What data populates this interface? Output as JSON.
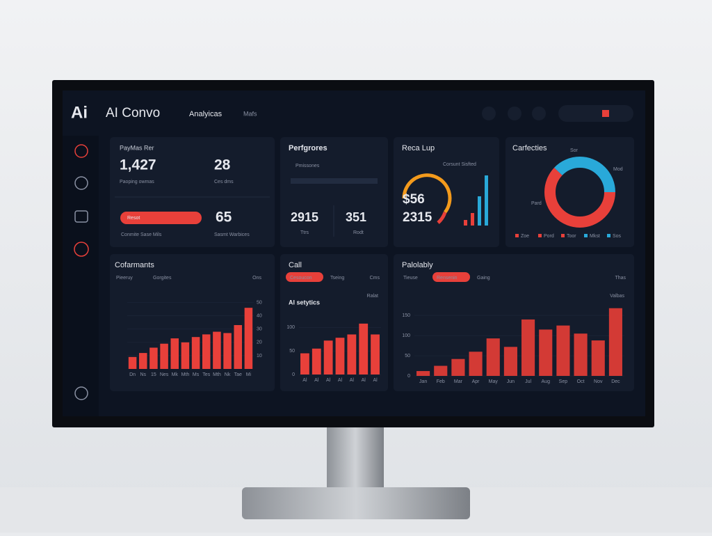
{
  "header": {
    "logo_mark": "Ai",
    "logo": "AI Convo",
    "nav": [
      "Analyicas",
      "Mafs"
    ]
  },
  "cards": {
    "summary": {
      "title": "PayMas Rer",
      "stat1": "1,427",
      "stat1_label": "Paoping owmas",
      "stat2": "28",
      "stat2_label": "Ces dms",
      "pill": "Resot",
      "pill_label": "Conmite Sase Mils",
      "stat3": "65",
      "stat3_label": "Sasmt Warbices"
    },
    "performance": {
      "title": "Perfgrores",
      "subtitle": "Pmissones",
      "stat1": "2915",
      "stat1_label": "Ttrs",
      "stat2": "351",
      "stat2_label": "Rodt"
    },
    "recap": {
      "title": "Reca Lup",
      "subtitle": "Corsunt Sisfted",
      "stat1": "$56",
      "stat2": "2315"
    },
    "donut": {
      "title": "Carfecties",
      "top_label": "Sor",
      "right_label": "Mod",
      "left_label": "Pard",
      "values": [
        62,
        38
      ],
      "colors": [
        "#e8403a",
        "#29a9d9"
      ],
      "legend": [
        {
          "name": "Zoe",
          "color": "#e8403a"
        },
        {
          "name": "Pord",
          "color": "#e8403a"
        },
        {
          "name": "Toor",
          "color": "#e8403a"
        },
        {
          "name": "Mkst",
          "color": "#29a9d9"
        },
        {
          "name": "Sos",
          "color": "#29a9d9"
        }
      ]
    }
  },
  "chart_data": [
    {
      "type": "bar",
      "title": "Cofarmants",
      "tabs": [
        "Pieeruy",
        "Gorgites"
      ],
      "corner": "Ons",
      "active_tab": null,
      "categories": [
        "Dn",
        "Ns",
        "15",
        "Nes",
        "Mk",
        "Mth",
        "Ms",
        "Tes",
        "Mth",
        "Nk",
        "Tae",
        "Mi"
      ],
      "values": [
        9,
        12,
        16,
        19,
        23,
        20,
        24,
        26,
        28,
        27,
        33,
        46
      ],
      "color": "#e8403a",
      "ylim": [
        0,
        55
      ],
      "yticks": [
        10,
        20,
        30,
        40,
        50
      ],
      "axis_side": "right"
    },
    {
      "type": "bar",
      "title": "Call",
      "tabs": [
        "Cesoucon",
        "Tseing"
      ],
      "corner": "Cms",
      "active_tab": 0,
      "subtitle": "Al setytics",
      "subtitle_right": "Ralat",
      "categories": [
        "Al",
        "Al",
        "Al",
        "Al",
        "Al",
        "Al",
        "Al"
      ],
      "values": [
        45,
        55,
        72,
        78,
        85,
        108,
        85
      ],
      "color": "#e8403a",
      "ylim": [
        0,
        130
      ],
      "yticks": [
        0,
        50,
        100
      ],
      "axis_side": "left"
    },
    {
      "type": "bar",
      "title": "Palolably",
      "tabs": [
        "Tieuse",
        "Rensenin",
        "Gaing"
      ],
      "corner": "Thas",
      "active_tab": 1,
      "subtitle_right": "Valbas",
      "categories": [
        "Jan",
        "Feb",
        "Mar",
        "Apr",
        "May",
        "Jun",
        "Jul",
        "Aug",
        "Sep",
        "Oct",
        "Nov",
        "Dec"
      ],
      "values": [
        12,
        25,
        42,
        60,
        93,
        72,
        140,
        115,
        125,
        105,
        88,
        168
      ],
      "color": "#d33a35",
      "ylim": [
        0,
        190
      ],
      "yticks": [
        0,
        50,
        100,
        150
      ],
      "axis_side": "left"
    }
  ]
}
